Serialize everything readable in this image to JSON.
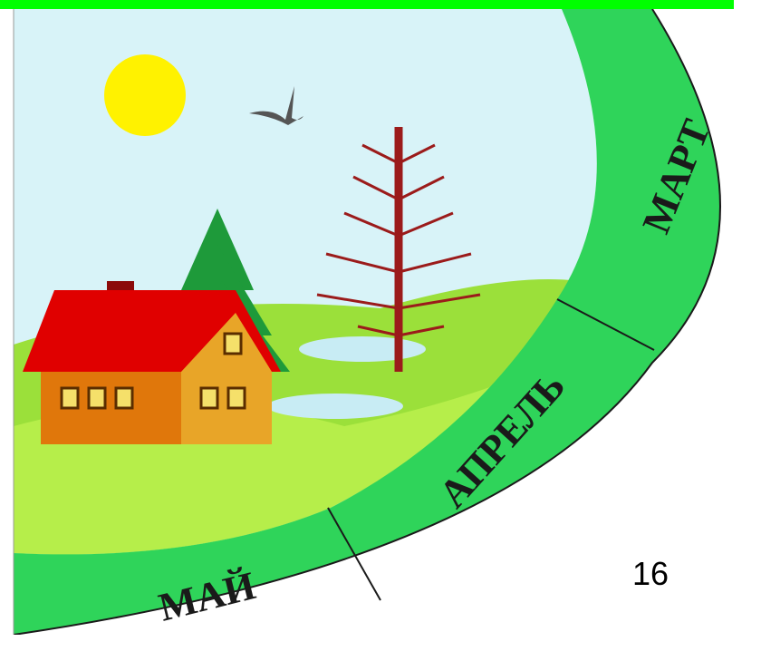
{
  "ring_labels": [
    "МАРТ",
    "АПРЕЛЬ",
    "МАЙ"
  ],
  "page_number": "16"
}
